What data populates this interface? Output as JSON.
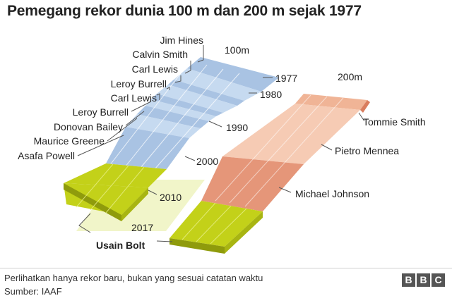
{
  "title": "Pemegang rekor dunia 100 m dan 200 m sejak 1977",
  "tracks": {
    "track_100m": "100m",
    "track_200m": "200m"
  },
  "years": {
    "y1977": "1977",
    "y1980": "1980",
    "y1990": "1990",
    "y2000": "2000",
    "y2010": "2010",
    "y2017": "2017"
  },
  "holders_100m": [
    "Jim Hines",
    "Calvin Smith",
    "Carl Lewis",
    "Leroy Burrell",
    "Carl Lewis",
    "Leroy Burrell",
    "Donovan Bailey",
    "Maurice Greene",
    "Asafa Powell"
  ],
  "holders_200m": [
    "Tommie Smith",
    "Pietro Mennea",
    "Michael Johnson"
  ],
  "current_holder": "Usain Bolt",
  "colors": {
    "track_100m_light": "#c6daf0",
    "track_100m_dark": "#a9c3e3",
    "track_200m_light": "#f6cbb4",
    "track_200m_mid": "#f0b496",
    "track_200m_dark": "#e59679",
    "bolt": "#c3d119",
    "bolt_side": "#8f9b0c",
    "recent_area": "#f1f5c9"
  },
  "footer": {
    "note": "Perlihatkan hanya rekor baru, bukan yang sesuai catatan waktu",
    "source": "Sumber: IAAF",
    "logo_letters": [
      "B",
      "B",
      "C"
    ]
  }
}
